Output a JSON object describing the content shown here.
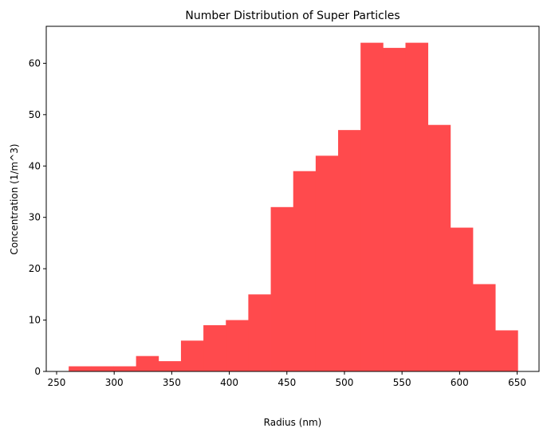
{
  "chart_data": {
    "type": "bar",
    "title": "Number Distribution of Super Particles",
    "xlabel": "Radius (nm)",
    "ylabel": "Concentration (1/m^3)",
    "bar_color": "#ff4a4d",
    "xlim": [
      241,
      669
    ],
    "ylim": [
      0,
      67.2
    ],
    "bin_edges": [
      260.5,
      280.0,
      299.5,
      319.0,
      338.5,
      358.0,
      377.5,
      397.0,
      416.5,
      436.0,
      455.5,
      475.0,
      494.5,
      514.0,
      533.5,
      553.0,
      572.5,
      592.0,
      611.5,
      631.0,
      650.5
    ],
    "values": [
      1,
      1,
      1,
      3,
      2,
      6,
      9,
      10,
      15,
      32,
      39,
      42,
      47,
      64,
      63,
      64,
      48,
      28,
      17,
      8
    ],
    "xticks": [
      250,
      300,
      350,
      400,
      450,
      500,
      550,
      600,
      650
    ],
    "yticks": [
      0,
      10,
      20,
      30,
      40,
      50,
      60
    ],
    "grid": false,
    "legend": false
  }
}
